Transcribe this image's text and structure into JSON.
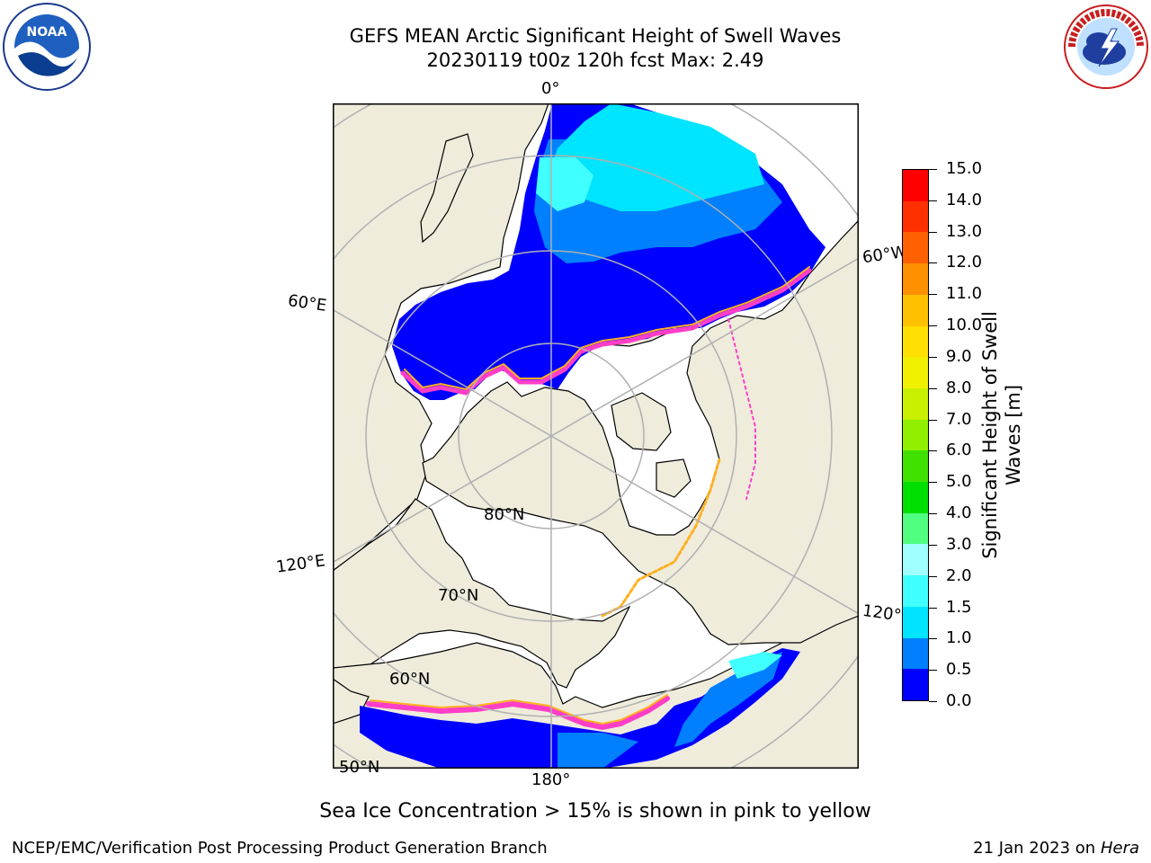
{
  "title": {
    "line1": "GEFS MEAN Arctic Significant Height of Swell Waves",
    "line2": "20230119 t00z 120h fcst   Max: 2.49"
  },
  "logos": {
    "left": "NOAA",
    "right": "NATIONAL WEATHER SERVICE"
  },
  "map": {
    "projection": "north-polar-stereographic",
    "meridian_labels": {
      "m0": "0°",
      "m60e": "60°E",
      "m60w": "60°W",
      "m120e": "120°E",
      "m120w": "120°W",
      "m180": "180°"
    },
    "parallel_labels": {
      "p80": "80°N",
      "p70": "70°N",
      "p60": "60°N",
      "p50": "50°N"
    },
    "colors": {
      "land": "#efecdc",
      "ice": "#ffffff",
      "grid": "#b0b0b0",
      "coast": "#000000"
    }
  },
  "colorbar": {
    "label_line1": "Significant Height of Swell",
    "label_line2": "Waves [m]",
    "ticks": [
      "0.0",
      "0.5",
      "1.0",
      "1.5",
      "2.0",
      "3.0",
      "4.0",
      "5.0",
      "6.0",
      "7.0",
      "8.0",
      "9.0",
      "10.0",
      "11.0",
      "12.0",
      "13.0",
      "14.0",
      "15.0"
    ],
    "colors": [
      "#0000ff",
      "#0080ff",
      "#00e5ff",
      "#40ffff",
      "#a0ffff",
      "#50ff80",
      "#00e000",
      "#40e000",
      "#90f000",
      "#c8f000",
      "#f0f000",
      "#ffe000",
      "#ffc000",
      "#ff9000",
      "#ff6000",
      "#ff3000",
      "#ff0000"
    ]
  },
  "note": "Sea Ice Concentration > 15% is shown in pink to yellow",
  "footer": {
    "left": "NCEP/EMC/Verification Post Processing Product Generation Branch",
    "right_prefix": "21 Jan 2023 on ",
    "right_italic": "Hera"
  }
}
